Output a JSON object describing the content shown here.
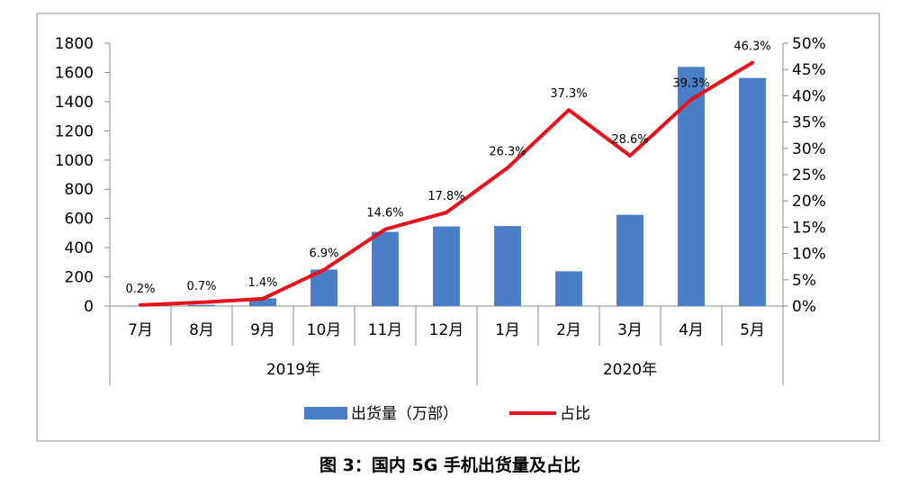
{
  "caption": "图 3：国内 5G 手机出货量及占比",
  "chart_data": {
    "type": "bar",
    "categories": [
      "7月",
      "8月",
      "9月",
      "10月",
      "11月",
      "12月",
      "1月",
      "2月",
      "3月",
      "4月",
      "5月"
    ],
    "groups": [
      {
        "label": "2019年",
        "categories": [
          "7月",
          "8月",
          "9月",
          "10月",
          "11月",
          "12月"
        ]
      },
      {
        "label": "2020年",
        "categories": [
          "1月",
          "2月",
          "3月",
          "4月",
          "5月"
        ]
      }
    ],
    "series": [
      {
        "name": "出货量（万部）",
        "type": "bar",
        "axis": "left",
        "color": "#4A7EC7",
        "values": [
          3,
          8,
          53,
          250,
          508,
          545,
          548,
          238,
          625,
          1638,
          1562
        ]
      },
      {
        "name": "占比",
        "type": "line",
        "axis": "right",
        "color": "#E8121C",
        "values": [
          0.2,
          0.7,
          1.4,
          6.9,
          14.6,
          17.8,
          26.3,
          37.3,
          28.6,
          39.3,
          46.3
        ],
        "labels": [
          "0.2%",
          "0.7%",
          "1.4%",
          "6.9%",
          "14.6%",
          "17.8%",
          "26.3%",
          "37.3%",
          "28.6%",
          "39.3%",
          "46.3%"
        ]
      }
    ],
    "ylim_left": [
      0,
      1800
    ],
    "yticks_left": [
      "0",
      "200",
      "400",
      "600",
      "800",
      "1000",
      "1200",
      "1400",
      "1600",
      "1800"
    ],
    "ylim_right": [
      0,
      50
    ],
    "yticks_right": [
      "0%",
      "5%",
      "10%",
      "15%",
      "20%",
      "25%",
      "30%",
      "35%",
      "40%",
      "45%",
      "50%"
    ],
    "grid": false,
    "legend_position": "bottom"
  }
}
